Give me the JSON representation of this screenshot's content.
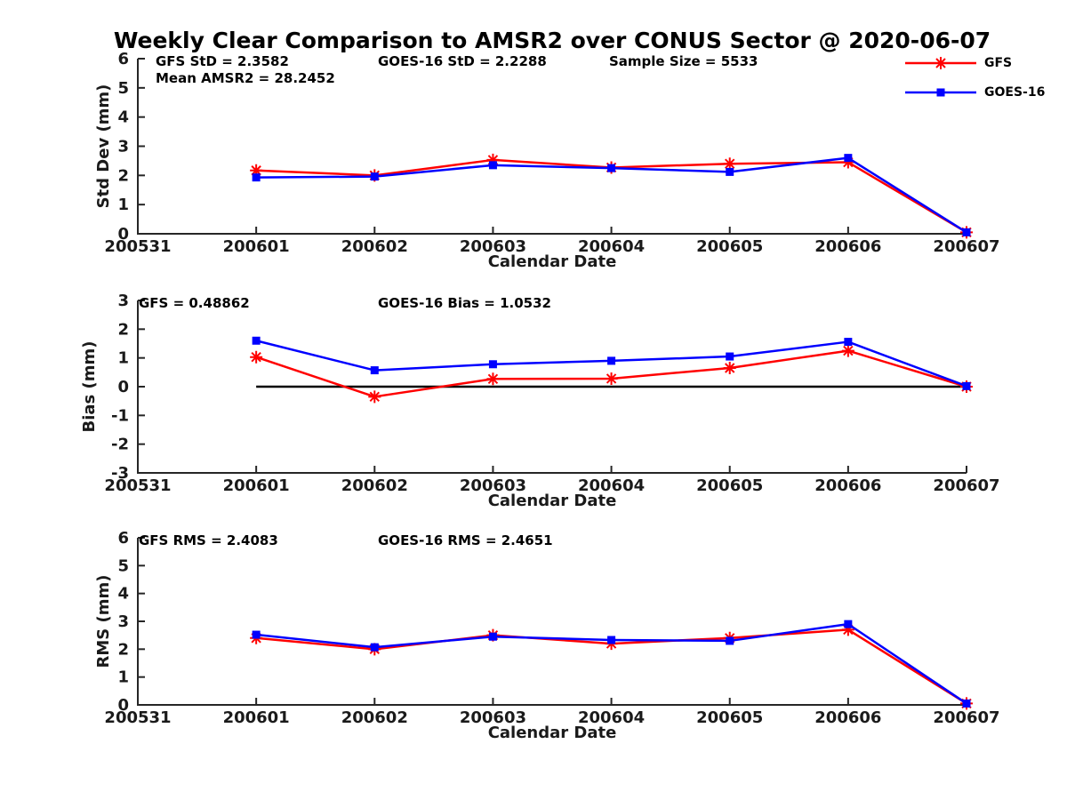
{
  "title": "Weekly Clear Comparison to AMSR2 over CONUS Sector @ 2020-06-07",
  "colors": {
    "gfs": "#ff0000",
    "goes16": "#0000ff",
    "axis": "#262626",
    "tick_text": "#1a1a1a",
    "annotation_text": "#000000",
    "zero_line": "#000000",
    "background": "#ffffff"
  },
  "legend": [
    {
      "label": "GFS",
      "color": "#ff0000",
      "marker": "asterisk"
    },
    {
      "label": "GOES-16",
      "color": "#0000ff",
      "marker": "square"
    }
  ],
  "chart_data": [
    {
      "type": "line",
      "name": "std-dev",
      "ylabel": "Std Dev (mm)",
      "xlabel": "Calendar Date",
      "ylim": [
        0,
        6
      ],
      "yticks": [
        0,
        1,
        2,
        3,
        4,
        5,
        6
      ],
      "categories": [
        "200531",
        "200601",
        "200602",
        "200603",
        "200604",
        "200605",
        "200606",
        "200607"
      ],
      "grid": false,
      "annotations": [
        {
          "text": "GFS StD = 2.3582",
          "x_offset": 20,
          "row": 0
        },
        {
          "text": "GOES-16 StD = 2.2288",
          "x_offset": 270,
          "row": 0
        },
        {
          "text": "Sample Size = 5533",
          "x_offset": 530,
          "row": 0
        },
        {
          "text": "Mean AMSR2 = 28.2452",
          "x_offset": 20,
          "row": 1
        }
      ],
      "series": [
        {
          "name": "GFS",
          "color": "#ff0000",
          "marker": "asterisk",
          "x": [
            "200601",
            "200602",
            "200603",
            "200604",
            "200605",
            "200606",
            "200607"
          ],
          "values": [
            2.17,
            2.0,
            2.53,
            2.27,
            2.4,
            2.45,
            0.05
          ]
        },
        {
          "name": "GOES-16",
          "color": "#0000ff",
          "marker": "square",
          "x": [
            "200601",
            "200602",
            "200603",
            "200604",
            "200605",
            "200606",
            "200607"
          ],
          "values": [
            1.93,
            1.96,
            2.35,
            2.25,
            2.12,
            2.6,
            0.05
          ]
        }
      ]
    },
    {
      "type": "line",
      "name": "bias",
      "ylabel": "Bias (mm)",
      "xlabel": "Calendar Date",
      "ylim": [
        -3,
        3
      ],
      "yticks": [
        -3,
        -2,
        -1,
        0,
        1,
        2,
        3
      ],
      "categories": [
        "200531",
        "200601",
        "200602",
        "200603",
        "200604",
        "200605",
        "200606",
        "200607"
      ],
      "grid": false,
      "zero_line": {
        "from": "200601",
        "to": "200607",
        "y": 0
      },
      "annotations": [
        {
          "text": "GFS = 0.48862",
          "x_offset": 1,
          "row": 0
        },
        {
          "text": "GOES-16 Bias  = 1.0532",
          "x_offset": 270,
          "row": 0
        }
      ],
      "series": [
        {
          "name": "GFS",
          "color": "#ff0000",
          "marker": "asterisk",
          "x": [
            "200601",
            "200602",
            "200603",
            "200604",
            "200605",
            "200606",
            "200607"
          ],
          "values": [
            1.03,
            -0.35,
            0.27,
            0.28,
            0.65,
            1.25,
            0.0
          ]
        },
        {
          "name": "GOES-16",
          "color": "#0000ff",
          "marker": "square",
          "x": [
            "200601",
            "200602",
            "200603",
            "200604",
            "200605",
            "200606",
            "200607"
          ],
          "values": [
            1.6,
            0.57,
            0.78,
            0.9,
            1.05,
            1.56,
            0.02
          ]
        }
      ]
    },
    {
      "type": "line",
      "name": "rms",
      "ylabel": "RMS (mm)",
      "xlabel": "Calendar Date",
      "ylim": [
        0,
        6
      ],
      "yticks": [
        0,
        1,
        2,
        3,
        4,
        5,
        6
      ],
      "categories": [
        "200531",
        "200601",
        "200602",
        "200603",
        "200604",
        "200605",
        "200606",
        "200607"
      ],
      "grid": false,
      "annotations": [
        {
          "text": "GFS RMS = 2.4083",
          "x_offset": 1,
          "row": 0
        },
        {
          "text": "GOES-16 RMS = 2.4651",
          "x_offset": 270,
          "row": 0
        }
      ],
      "series": [
        {
          "name": "GFS",
          "color": "#ff0000",
          "marker": "asterisk",
          "x": [
            "200601",
            "200602",
            "200603",
            "200604",
            "200605",
            "200606",
            "200607"
          ],
          "values": [
            2.4,
            2.0,
            2.5,
            2.2,
            2.4,
            2.7,
            0.05
          ]
        },
        {
          "name": "GOES-16",
          "color": "#0000ff",
          "marker": "square",
          "x": [
            "200601",
            "200602",
            "200603",
            "200604",
            "200605",
            "200606",
            "200607"
          ],
          "values": [
            2.52,
            2.07,
            2.45,
            2.33,
            2.3,
            2.9,
            0.05
          ]
        }
      ]
    }
  ]
}
